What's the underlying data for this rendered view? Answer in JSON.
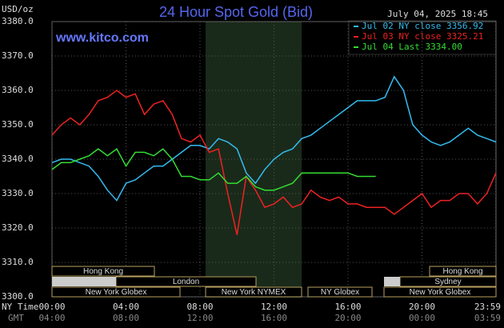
{
  "chart_data": {
    "type": "line",
    "title": "24 Hour Spot Gold (Bid)",
    "unit_label": "USD/oz",
    "website": "www.kitco.com",
    "timestamp": "July 04, 2025 18:45",
    "x_axis_labels": [
      "NY Time",
      "GMT"
    ],
    "x": [
      0,
      0.5,
      1,
      1.5,
      2,
      2.5,
      3,
      3.5,
      4,
      4.5,
      5,
      5.5,
      6,
      6.5,
      7,
      7.5,
      8,
      8.5,
      9,
      9.5,
      10,
      10.5,
      11,
      11.5,
      12,
      12.5,
      13,
      13.5,
      14,
      14.5,
      15,
      15.5,
      16,
      16.5,
      17,
      17.5,
      18,
      18.5,
      19,
      19.5,
      20,
      20.5,
      21,
      21.5,
      22,
      22.5,
      23,
      23.5,
      24
    ],
    "series": [
      {
        "name": "Jul 02 NY close 3356.92",
        "color": "#33bbee",
        "values": [
          3339,
          3340,
          3340,
          3339,
          3338,
          3335,
          3331,
          3328,
          3333,
          3334,
          3336,
          3338,
          3338,
          3340,
          3342,
          3344,
          3344,
          3343,
          3346,
          3345,
          3343,
          3336,
          3333,
          3337,
          3340,
          3342,
          3343,
          3346,
          3347,
          3349,
          3351,
          3353,
          3355,
          3357,
          3357,
          3357,
          3358,
          3364,
          3360,
          3350,
          3347,
          3345,
          3344,
          3345,
          3347,
          3349,
          3347,
          3346,
          3345
        ]
      },
      {
        "name": "Jul 03 NY close 3325.21",
        "color": "#ee2222",
        "values": [
          3347,
          3350,
          3352,
          3350,
          3353,
          3357,
          3358,
          3360,
          3358,
          3359,
          3353,
          3356,
          3357,
          3353,
          3346,
          3345,
          3347,
          3342,
          3343,
          3330,
          3318,
          3335,
          3331,
          3326,
          3327,
          3329,
          3326,
          3327,
          3331,
          3329,
          3328,
          3329,
          3327,
          3327,
          3326,
          3326,
          3326,
          3324,
          3326,
          3328,
          3330,
          3326,
          3328,
          3328,
          3330,
          3330,
          3327,
          3330,
          3336
        ]
      },
      {
        "name": "Jul 04 Last 3334.00",
        "color": "#33dd33",
        "values": [
          3337,
          3339,
          3339,
          3340,
          3341,
          3343,
          3341,
          3343,
          3338,
          3342,
          3342,
          3341,
          3343,
          3340,
          3335,
          3335,
          3334,
          3334,
          3336,
          3333,
          3333,
          3335,
          3332,
          3331,
          3331,
          3332,
          3333,
          3336,
          3336,
          3336,
          3336,
          3336,
          3336,
          3335,
          3335,
          3335,
          null,
          null,
          null,
          null,
          null,
          null,
          null,
          null,
          null,
          null,
          null,
          null,
          null
        ]
      }
    ],
    "xlim": [
      0,
      24
    ],
    "xticks": [
      {
        "value": 0,
        "label": "00:00"
      },
      {
        "value": 4,
        "label": "04:00"
      },
      {
        "value": 8,
        "label": "08:00"
      },
      {
        "value": 12,
        "label": "12:00"
      },
      {
        "value": 16,
        "label": "16:00"
      },
      {
        "value": 20,
        "label": "20:00"
      },
      {
        "value": 23.98,
        "label": "23:59"
      }
    ],
    "gmt_labels": [
      "04:00",
      "08:00",
      "12:00",
      "16:00",
      "20:00",
      "00:00",
      "03:59"
    ],
    "ylim": [
      3300,
      3380
    ],
    "yticks": [
      {
        "value": 3300,
        "label": "3300.0"
      },
      {
        "value": 3310,
        "label": "3310.0"
      },
      {
        "value": 3320,
        "label": "3320.0"
      },
      {
        "value": 3330,
        "label": "3330.0"
      },
      {
        "value": 3340,
        "label": "3340.0"
      },
      {
        "value": 3350,
        "label": "3350.0"
      },
      {
        "value": 3360,
        "label": "3360.0"
      },
      {
        "value": 3370,
        "label": "3370.0"
      },
      {
        "value": 3380,
        "label": "3380.0"
      }
    ],
    "grid": true,
    "sessions": [
      "Hong Kong",
      "Hong Kong",
      "London",
      "Sydney",
      "New York Globex",
      "New York NYMEX",
      "NY Globex",
      "New York Globex"
    ]
  }
}
